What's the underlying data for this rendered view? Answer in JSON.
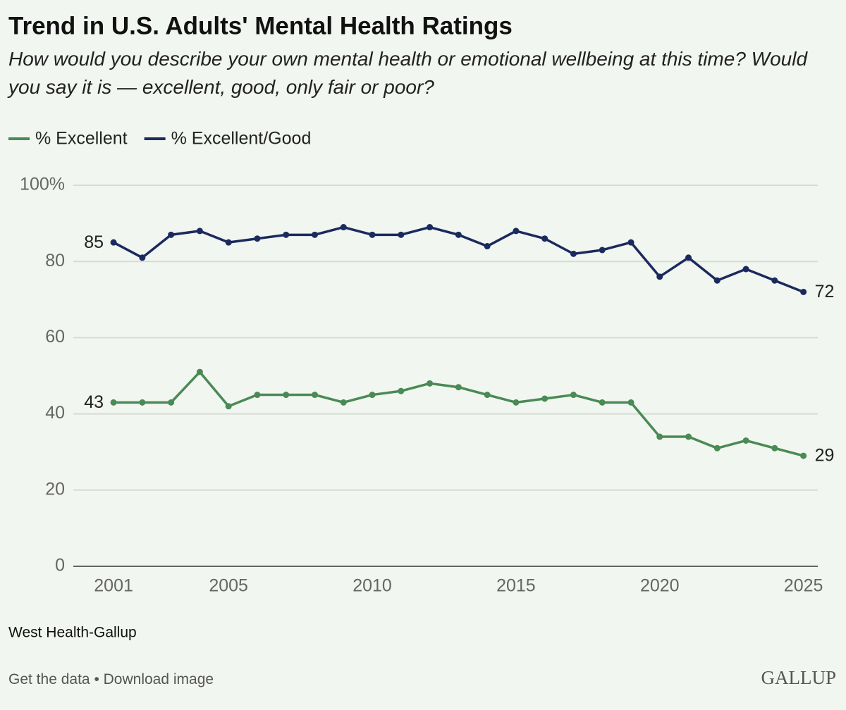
{
  "chart_data": {
    "type": "line",
    "title": "Trend in U.S. Adults' Mental Health Ratings",
    "subtitle": "How would you describe your own mental health or emotional wellbeing at this time? Would you say it is — excellent, good, only fair or poor?",
    "x": [
      2001,
      2002,
      2003,
      2004,
      2005,
      2006,
      2007,
      2008,
      2009,
      2010,
      2011,
      2012,
      2013,
      2014,
      2015,
      2016,
      2017,
      2018,
      2019,
      2020,
      2021,
      2022,
      2023,
      2024,
      2025
    ],
    "series": [
      {
        "name": "% Excellent",
        "color": "#4a8a55",
        "values": [
          43,
          43,
          43,
          51,
          42,
          45,
          45,
          45,
          43,
          45,
          46,
          48,
          47,
          45,
          43,
          44,
          45,
          43,
          43,
          34,
          34,
          31,
          33,
          31,
          29
        ]
      },
      {
        "name": "% Excellent/Good",
        "color": "#1b2a5e",
        "values": [
          85,
          81,
          87,
          88,
          85,
          86,
          87,
          87,
          89,
          87,
          87,
          89,
          87,
          84,
          88,
          86,
          82,
          83,
          85,
          76,
          81,
          75,
          78,
          75,
          72
        ]
      }
    ],
    "xlim": [
      1999.6,
      2025.5
    ],
    "xticks": [
      2001,
      2005,
      2010,
      2015,
      2020,
      2025
    ],
    "ylim": [
      0,
      100
    ],
    "yticks": [
      0,
      20,
      40,
      60,
      80,
      {
        "value": 100,
        "label": "100%"
      }
    ],
    "grid": true,
    "legend": "top-left"
  },
  "footer": {
    "source": "West Health-Gallup",
    "links": [
      "Get the data",
      "Download image"
    ],
    "separator": "•",
    "brand": "GALLUP"
  }
}
